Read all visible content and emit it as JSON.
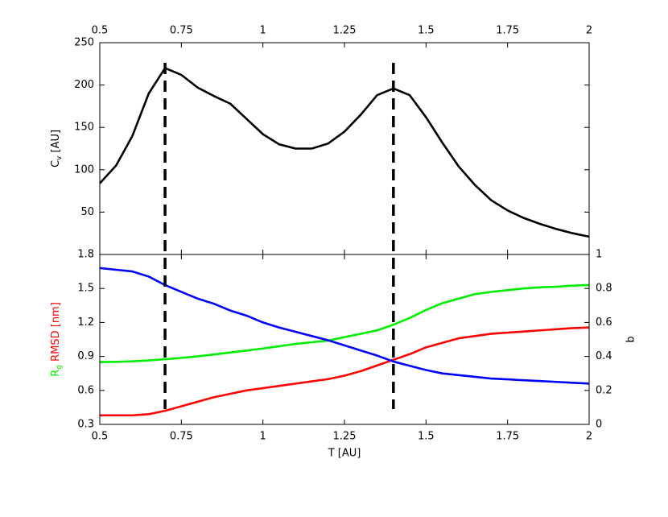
{
  "chart_data": [
    {
      "type": "line",
      "ylabel_parts": [
        {
          "text": "C"
        },
        {
          "text": "v",
          "sub": true
        },
        {
          "text": " [AU]"
        }
      ],
      "x": [
        0.5,
        0.55,
        0.6,
        0.65,
        0.7,
        0.75,
        0.8,
        0.85,
        0.9,
        0.95,
        1.0,
        1.05,
        1.1,
        1.15,
        1.2,
        1.25,
        1.3,
        1.35,
        1.4,
        1.45,
        1.5,
        1.55,
        1.6,
        1.65,
        1.7,
        1.75,
        1.8,
        1.85,
        1.9,
        1.95,
        2.0
      ],
      "series": [
        {
          "color": "#000000",
          "values": [
            84,
            105,
            140,
            190,
            220,
            212,
            197,
            187,
            178,
            160,
            142,
            130,
            125,
            125,
            131,
            145,
            165,
            188,
            196,
            188,
            162,
            132,
            104,
            82,
            64,
            52,
            43,
            36,
            30,
            25,
            21
          ]
        }
      ],
      "xlim": [
        0.5,
        2
      ],
      "xticks": [
        0.5,
        0.75,
        1,
        1.25,
        1.5,
        1.75,
        2
      ],
      "xtick_side": "top",
      "ylim": [
        0,
        250
      ],
      "yticks": [
        50,
        100,
        150,
        200,
        250
      ],
      "vlines": [
        0.7,
        1.4
      ]
    },
    {
      "type": "line",
      "xlabel": "T [AU]",
      "ylabel_parts": [
        {
          "text": "R",
          "color": "#00ee00"
        },
        {
          "text": "g",
          "sub": true,
          "color": "#00ee00"
        },
        {
          "text": " RMSD [nm]",
          "color": "#ff0000"
        }
      ],
      "y2label": "b",
      "y2label_color": "#0000ff",
      "x": [
        0.5,
        0.55,
        0.6,
        0.65,
        0.7,
        0.75,
        0.8,
        0.85,
        0.9,
        0.95,
        1.0,
        1.05,
        1.1,
        1.15,
        1.2,
        1.25,
        1.3,
        1.35,
        1.4,
        1.45,
        1.5,
        1.55,
        1.6,
        1.65,
        1.7,
        1.75,
        1.8,
        1.85,
        1.9,
        1.95,
        2.0
      ],
      "series": [
        {
          "color": "#ff0000",
          "values": [
            0.38,
            0.38,
            0.38,
            0.39,
            0.42,
            0.46,
            0.5,
            0.54,
            0.57,
            0.6,
            0.62,
            0.64,
            0.66,
            0.68,
            0.7,
            0.73,
            0.77,
            0.82,
            0.87,
            0.92,
            0.98,
            1.02,
            1.06,
            1.08,
            1.1,
            1.11,
            1.12,
            1.13,
            1.14,
            1.15,
            1.155
          ]
        },
        {
          "color": "#00ee00",
          "values": [
            0.85,
            0.852,
            0.857,
            0.865,
            0.875,
            0.887,
            0.9,
            0.917,
            0.935,
            0.952,
            0.97,
            0.99,
            1.01,
            1.025,
            1.04,
            1.07,
            1.1,
            1.13,
            1.18,
            1.24,
            1.31,
            1.37,
            1.41,
            1.45,
            1.47,
            1.485,
            1.5,
            1.51,
            1.515,
            1.525,
            1.53
          ]
        },
        {
          "color": "#0000ff",
          "axis": "y2",
          "values": [
            0.92,
            0.91,
            0.9,
            0.87,
            0.82,
            0.78,
            0.74,
            0.71,
            0.67,
            0.64,
            0.6,
            0.57,
            0.545,
            0.52,
            0.495,
            0.465,
            0.435,
            0.405,
            0.37,
            0.345,
            0.32,
            0.3,
            0.29,
            0.28,
            0.27,
            0.265,
            0.26,
            0.255,
            0.25,
            0.245,
            0.24
          ]
        }
      ],
      "xlim": [
        0.5,
        2
      ],
      "xticks": [
        0.5,
        0.75,
        1,
        1.25,
        1.5,
        1.75,
        2
      ],
      "xtick_side": "bottom",
      "ylim": [
        0.3,
        1.8
      ],
      "yticks": [
        0.3,
        0.6,
        0.9,
        1.2,
        1.5,
        1.8
      ],
      "y2lim": [
        0,
        1
      ],
      "y2ticks": [
        0,
        0.2,
        0.4,
        0.6,
        0.8,
        1
      ]
    }
  ]
}
